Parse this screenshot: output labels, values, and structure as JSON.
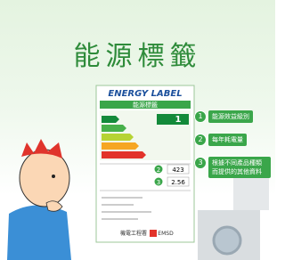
{
  "header": {
    "title": "能源標籤"
  },
  "label": {
    "title_en": "ENERGY LABEL",
    "title_zh": "能源標籤",
    "grade": "1",
    "readings": [
      "423",
      "2.56"
    ],
    "footer_zh": "機電工程署",
    "footer_en": "EMSD"
  },
  "callouts": [
    {
      "number": "1",
      "text": "能源效益級別"
    },
    {
      "number": "2",
      "text": "每年耗電量"
    },
    {
      "number": "3",
      "text": "根據不同產品種類而提供的其他資料"
    }
  ]
}
